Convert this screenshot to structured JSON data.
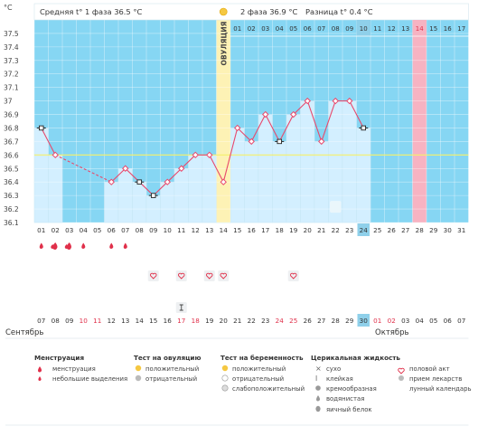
{
  "chart_data": {
    "type": "line",
    "title": "",
    "ylabel": "°C",
    "ylim": [
      36.1,
      37.6
    ],
    "y_ticks": [
      "37.5",
      "37.4",
      "37.3",
      "37.2",
      "37.1",
      "37",
      "36.9",
      "36.8",
      "36.7",
      "36.6",
      "36.5",
      "36.4",
      "36.3",
      "36.2",
      "36.1"
    ],
    "cycle_days": [
      "01",
      "02",
      "03",
      "04",
      "05",
      "06",
      "07",
      "08",
      "09",
      "10",
      "11",
      "12",
      "13",
      "14",
      "15",
      "16",
      "17",
      "18",
      "19",
      "20",
      "21",
      "22",
      "23",
      "24",
      "25",
      "26",
      "27",
      "28",
      "29",
      "30",
      "31"
    ],
    "calendar_dates": [
      "07",
      "08",
      "09",
      "10",
      "11",
      "12",
      "13",
      "14",
      "15",
      "16",
      "17",
      "18",
      "19",
      "20",
      "21",
      "22",
      "23",
      "24",
      "25",
      "26",
      "27",
      "28",
      "29",
      "30",
      "01",
      "02",
      "03",
      "04",
      "05",
      "06",
      "07"
    ],
    "red_dates_idx": [
      3,
      4,
      10,
      11,
      17,
      18,
      24,
      25
    ],
    "today_idx": 23,
    "month_start": "Сентябрь",
    "month_end": "Октябрь",
    "series": [
      {
        "values": [
          36.8,
          36.6,
          null,
          null,
          null,
          36.4,
          36.5,
          36.4,
          36.3,
          36.4,
          36.5,
          36.6,
          36.6,
          36.4,
          36.8,
          36.7,
          36.9,
          36.7,
          36.9,
          37.0,
          36.7,
          37.0,
          37.0,
          36.8,
          null,
          null,
          null,
          null,
          null,
          null,
          null
        ]
      }
    ],
    "coverline": 36.6,
    "phase1_avg_label": "Средняя t° 1 фаза",
    "phase1_avg_value": "36.5 °C",
    "phase2_label": "2 фаза",
    "phase2_value": "36.9 °C",
    "diff_label": "Разница t°",
    "diff_value": "0.4 °C",
    "ovulation_label": "ОВУЛЯЦИЯ",
    "ovulation_day_idx": 13,
    "phase2_days": [
      "01",
      "02",
      "03",
      "04",
      "05",
      "06",
      "07",
      "08",
      "09",
      "10",
      "11",
      "12",
      "13",
      "14",
      "15",
      "16",
      "17"
    ],
    "phase2_highlight_idx": 13,
    "phase2_today_idx": 9,
    "grid": true
  },
  "markers": {
    "menstruation_big": [
      1,
      2
    ],
    "menstruation_small": [
      0,
      3,
      5,
      6
    ],
    "intercourse": [
      8,
      10,
      12,
      13,
      18
    ],
    "sticky": [
      10
    ],
    "moon": [
      21
    ]
  },
  "legend": {
    "menstruation": {
      "title": "Менструация",
      "items": [
        "менструация",
        "небольшие выделения"
      ]
    },
    "ovulation_test": {
      "title": "Тест на овуляцию",
      "items": [
        "положительный",
        "отрицательный"
      ]
    },
    "pregnancy_test": {
      "title": "Тест на беременность",
      "items": [
        "положительный",
        "отрицательный",
        "слабоположительный"
      ]
    },
    "cervical": {
      "title": "Церикальная жидкость",
      "items": [
        "сухо",
        "клейкая",
        "кремообразная",
        "водянистая",
        "яичный белок"
      ]
    },
    "other": {
      "items": [
        "половой акт",
        "прием лекарств",
        "лунный календарь"
      ]
    }
  },
  "colors": {
    "plot_bg": "#86d6f3",
    "bar_fill": "#d3efff",
    "bar_stroke": "#9ed6f0",
    "line": "#e8496c",
    "coverline": "#f5f06a",
    "ovulation_col": "#fdf2b5",
    "highlight_col": "#f7b3c2",
    "today_box": "#8fd0ea",
    "red_text": "#e0304a"
  }
}
